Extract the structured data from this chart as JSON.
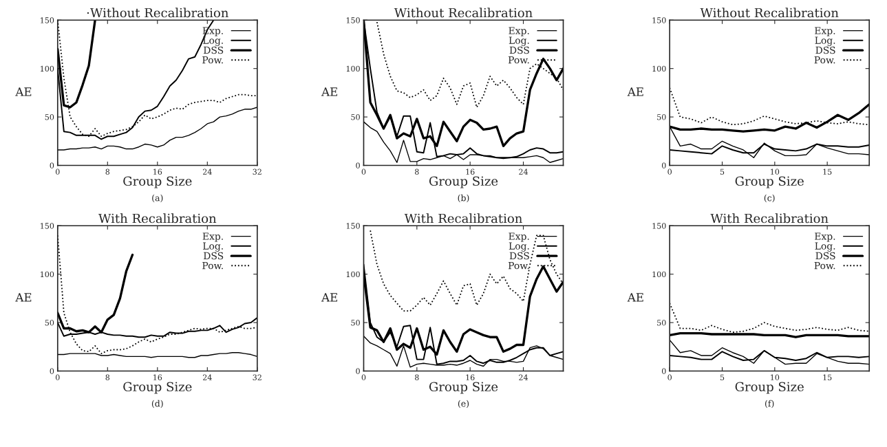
{
  "chart_data": [
    {
      "type": "line",
      "title": "·Without Recalibration",
      "xlabel": "Group Size",
      "ylabel": "AE",
      "annotations": [
        "(a)"
      ],
      "xlim": [
        0,
        32
      ],
      "xticks": [
        0,
        8,
        16,
        24,
        32
      ],
      "ylim": [
        0,
        150
      ],
      "yticks": [
        0,
        50,
        100,
        150
      ],
      "legend": "top right",
      "grid": false,
      "x": [
        0,
        1,
        2,
        3,
        4,
        5,
        6,
        7,
        8,
        9,
        10,
        11,
        12,
        13,
        14,
        15,
        16,
        17,
        18,
        19,
        20,
        21,
        22,
        23,
        24,
        25,
        26,
        27,
        28,
        29,
        30,
        31,
        32
      ],
      "series": [
        {
          "name": "Exp.",
          "color": "#000000",
          "line_style": "solid",
          "values": [
            16,
            16,
            17,
            17,
            18,
            18,
            19,
            17,
            20,
            20,
            19,
            17,
            17,
            19,
            22,
            21,
            19,
            21,
            26,
            29,
            29,
            31,
            34,
            38,
            43,
            45,
            50,
            51,
            53,
            56,
            58,
            58,
            60
          ]
        },
        {
          "name": "Log.",
          "color": "#000000",
          "line_style": "solid",
          "values": [
            100,
            35,
            34,
            31,
            31,
            31,
            31,
            27,
            30,
            30,
            32,
            34,
            39,
            50,
            56,
            57,
            61,
            71,
            82,
            88,
            98,
            110,
            112,
            125,
            140,
            150,
            null,
            null,
            null,
            null,
            null,
            null,
            null
          ]
        },
        {
          "name": "DSS",
          "color": "#000000",
          "line_style": "solid",
          "values": [
            120,
            62,
            60,
            65,
            83,
            103,
            150,
            null,
            null,
            null,
            null,
            null,
            null,
            null,
            null,
            null,
            null,
            null,
            null,
            null,
            null,
            null,
            null,
            null,
            null,
            null,
            null,
            null,
            null,
            null,
            null,
            null,
            null
          ]
        },
        {
          "name": "Pow.",
          "color": "#000000",
          "line_style": "dotted",
          "values": [
            150,
            90,
            50,
            40,
            32,
            30,
            38,
            30,
            33,
            35,
            36,
            37,
            40,
            45,
            52,
            48,
            50,
            53,
            57,
            59,
            58,
            63,
            65,
            66,
            67,
            67,
            65,
            69,
            71,
            73,
            73,
            72,
            72
          ]
        }
      ]
    },
    {
      "type": "line",
      "title": "Without Recalibration",
      "xlabel": "Group Size",
      "ylabel": "AE",
      "annotations": [
        "(b)"
      ],
      "xlim": [
        0,
        30
      ],
      "xticks": [
        0,
        8,
        16,
        24
      ],
      "ylim": [
        0,
        150
      ],
      "yticks": [
        0,
        50,
        100,
        150
      ],
      "legend": "top right",
      "grid": false,
      "x": [
        0,
        1,
        2,
        3,
        4,
        5,
        6,
        7,
        8,
        9,
        10,
        11,
        12,
        13,
        14,
        15,
        16,
        17,
        18,
        19,
        20,
        21,
        22,
        23,
        24,
        25,
        26,
        27,
        28,
        29,
        30
      ],
      "series": [
        {
          "name": "Exp.",
          "color": "#000000",
          "line_style": "solid",
          "values": [
            45,
            39,
            35,
            24,
            15,
            3,
            26,
            4,
            4,
            7,
            6,
            8,
            10,
            7,
            11,
            6,
            11,
            11,
            10,
            10,
            8,
            7,
            8,
            8,
            8,
            9,
            10,
            8,
            3,
            5,
            7
          ]
        },
        {
          "name": "Log.",
          "color": "#000000",
          "line_style": "solid",
          "values": [
            150,
            100,
            55,
            38,
            50,
            30,
            51,
            51,
            14,
            13,
            44,
            9,
            10,
            12,
            11,
            12,
            18,
            12,
            10,
            9,
            8,
            8,
            8,
            9,
            12,
            16,
            18,
            17,
            13,
            13,
            14
          ]
        },
        {
          "name": "DSS",
          "color": "#000000",
          "line_style": "solid",
          "values": [
            150,
            65,
            52,
            38,
            52,
            28,
            33,
            30,
            48,
            28,
            30,
            20,
            45,
            35,
            25,
            40,
            47,
            44,
            37,
            38,
            40,
            20,
            28,
            33,
            35,
            78,
            95,
            110,
            100,
            88,
            100
          ]
        },
        {
          "name": "Pow.",
          "color": "#000000",
          "line_style": "dotted",
          "values": [
            null,
            null,
            148,
            115,
            92,
            77,
            75,
            70,
            73,
            78,
            67,
            72,
            90,
            80,
            63,
            82,
            85,
            60,
            72,
            92,
            82,
            88,
            80,
            70,
            63,
            100,
            105,
            100,
            95,
            90,
            78
          ]
        }
      ]
    },
    {
      "type": "line",
      "title": "Without Recalibration",
      "xlabel": "Group Size",
      "ylabel": "AE",
      "annotations": [
        "(c)"
      ],
      "xlim": [
        0,
        19
      ],
      "xticks": [
        0,
        5,
        10,
        15
      ],
      "ylim": [
        0,
        150
      ],
      "yticks": [
        0,
        50,
        100,
        150
      ],
      "legend": "top right",
      "grid": false,
      "x": [
        0,
        1,
        2,
        3,
        4,
        5,
        6,
        7,
        8,
        9,
        10,
        11,
        12,
        13,
        14,
        15,
        16,
        17,
        18,
        19
      ],
      "series": [
        {
          "name": "Exp.",
          "color": "#000000",
          "line_style": "solid",
          "values": [
            40,
            20,
            22,
            17,
            17,
            25,
            20,
            16,
            8,
            23,
            15,
            10,
            10,
            11,
            22,
            18,
            15,
            12,
            12,
            11
          ]
        },
        {
          "name": "Log.",
          "color": "#000000",
          "line_style": "solid",
          "values": [
            16,
            15,
            14,
            13,
            12,
            20,
            16,
            13,
            13,
            22,
            17,
            16,
            15,
            17,
            22,
            20,
            20,
            19,
            19,
            21
          ]
        },
        {
          "name": "DSS",
          "color": "#000000",
          "line_style": "solid",
          "values": [
            40,
            37,
            37,
            38,
            37,
            37,
            36,
            35,
            36,
            37,
            36,
            40,
            38,
            44,
            39,
            45,
            52,
            47,
            54,
            63
          ]
        },
        {
          "name": "Pow.",
          "color": "#000000",
          "line_style": "dotted",
          "values": [
            80,
            50,
            48,
            44,
            50,
            45,
            42,
            43,
            46,
            51,
            48,
            45,
            43,
            44,
            46,
            44,
            43,
            45,
            43,
            42
          ]
        }
      ]
    },
    {
      "type": "line",
      "title": "With Recalibration",
      "xlabel": "Group Size",
      "ylabel": "AE",
      "annotations": [
        "(d)"
      ],
      "xlim": [
        0,
        32
      ],
      "xticks": [
        0,
        8,
        16,
        24,
        32
      ],
      "ylim": [
        0,
        150
      ],
      "yticks": [
        0,
        50,
        100,
        150
      ],
      "legend": "top right",
      "grid": false,
      "x": [
        0,
        1,
        2,
        3,
        4,
        5,
        6,
        7,
        8,
        9,
        10,
        11,
        12,
        13,
        14,
        15,
        16,
        17,
        18,
        19,
        20,
        21,
        22,
        23,
        24,
        25,
        26,
        27,
        28,
        29,
        30,
        31,
        32
      ],
      "series": [
        {
          "name": "Exp.",
          "color": "#000000",
          "line_style": "solid",
          "values": [
            17,
            17,
            18,
            18,
            18,
            18,
            18,
            16,
            16,
            17,
            16,
            15,
            15,
            15,
            15,
            14,
            15,
            15,
            15,
            15,
            15,
            14,
            14,
            16,
            16,
            17,
            18,
            18,
            19,
            19,
            18,
            17,
            15
          ]
        },
        {
          "name": "Log.",
          "color": "#000000",
          "line_style": "solid",
          "values": [
            50,
            36,
            38,
            38,
            39,
            40,
            38,
            40,
            38,
            37,
            37,
            36,
            36,
            35,
            35,
            37,
            36,
            36,
            40,
            39,
            39,
            41,
            41,
            42,
            42,
            44,
            47,
            40,
            43,
            45,
            49,
            50,
            55
          ]
        },
        {
          "name": "DSS",
          "color": "#000000",
          "line_style": "solid",
          "values": [
            60,
            44,
            44,
            41,
            42,
            40,
            46,
            40,
            53,
            58,
            75,
            103,
            120,
            null,
            null,
            null,
            null,
            null,
            null,
            null,
            null,
            null,
            null,
            null,
            null,
            null,
            null,
            null,
            null,
            null,
            null,
            null,
            null
          ]
        },
        {
          "name": "Pow.",
          "color": "#000000",
          "line_style": "dotted",
          "values": [
            140,
            60,
            40,
            28,
            21,
            20,
            26,
            18,
            21,
            22,
            22,
            23,
            26,
            30,
            33,
            30,
            33,
            35,
            38,
            38,
            40,
            42,
            44,
            43,
            44,
            44,
            40,
            42,
            44,
            46,
            44,
            44,
            45
          ]
        }
      ]
    },
    {
      "type": "line",
      "title": "With Recalibration",
      "xlabel": "Group Size",
      "ylabel": "AE",
      "annotations": [
        "(e)"
      ],
      "xlim": [
        0,
        30
      ],
      "xticks": [
        0,
        8,
        16,
        24
      ],
      "ylim": [
        0,
        150
      ],
      "yticks": [
        0,
        50,
        100,
        150
      ],
      "legend": "top right",
      "grid": false,
      "x": [
        0,
        1,
        2,
        3,
        4,
        5,
        6,
        7,
        8,
        9,
        10,
        11,
        12,
        13,
        14,
        15,
        16,
        17,
        18,
        19,
        20,
        21,
        22,
        23,
        24,
        25,
        26,
        27,
        28,
        29,
        30
      ],
      "series": [
        {
          "name": "Exp.",
          "color": "#000000",
          "line_style": "solid",
          "values": [
            36,
            29,
            26,
            22,
            18,
            5,
            26,
            4,
            7,
            8,
            7,
            6,
            6,
            7,
            6,
            8,
            11,
            7,
            5,
            12,
            12,
            10,
            10,
            9,
            10,
            24,
            26,
            23,
            16,
            14,
            12
          ]
        },
        {
          "name": "Log.",
          "color": "#000000",
          "line_style": "solid",
          "values": [
            110,
            50,
            35,
            30,
            40,
            25,
            46,
            47,
            12,
            12,
            45,
            7,
            8,
            10,
            10,
            11,
            16,
            10,
            8,
            11,
            9,
            9,
            11,
            14,
            18,
            22,
            24,
            24,
            16,
            18,
            20
          ]
        },
        {
          "name": "DSS",
          "color": "#000000",
          "line_style": "solid",
          "values": [
            100,
            45,
            42,
            30,
            44,
            22,
            28,
            24,
            44,
            22,
            25,
            17,
            42,
            30,
            20,
            38,
            43,
            40,
            37,
            35,
            35,
            20,
            23,
            27,
            27,
            77,
            95,
            108,
            95,
            82,
            92
          ]
        },
        {
          "name": "Pow.",
          "color": "#000000",
          "line_style": "dotted",
          "values": [
            null,
            145,
            110,
            90,
            78,
            70,
            62,
            62,
            68,
            76,
            68,
            80,
            93,
            80,
            68,
            88,
            90,
            68,
            80,
            100,
            90,
            98,
            85,
            80,
            72,
            110,
            140,
            140,
            115,
            100,
            90
          ]
        }
      ]
    },
    {
      "type": "line",
      "title": "With Recalibration",
      "xlabel": "Group Size",
      "ylabel": "AE",
      "annotations": [
        "(f)"
      ],
      "xlim": [
        0,
        19
      ],
      "xticks": [
        0,
        5,
        10,
        15
      ],
      "ylim": [
        0,
        150
      ],
      "yticks": [
        0,
        50,
        100,
        150
      ],
      "legend": "top right",
      "grid": false,
      "x": [
        0,
        1,
        2,
        3,
        4,
        5,
        6,
        7,
        8,
        9,
        10,
        11,
        12,
        13,
        14,
        15,
        16,
        17,
        18,
        19
      ],
      "series": [
        {
          "name": "Exp.",
          "color": "#000000",
          "line_style": "solid",
          "values": [
            32,
            19,
            21,
            16,
            16,
            24,
            19,
            15,
            8,
            21,
            14,
            7,
            8,
            8,
            18,
            14,
            10,
            8,
            8,
            7
          ]
        },
        {
          "name": "Log.",
          "color": "#000000",
          "line_style": "solid",
          "values": [
            16,
            15,
            14,
            12,
            12,
            20,
            15,
            11,
            12,
            21,
            14,
            13,
            11,
            13,
            19,
            14,
            15,
            15,
            14,
            15
          ]
        },
        {
          "name": "DSS",
          "color": "#000000",
          "line_style": "solid",
          "values": [
            37,
            39,
            39,
            39,
            38,
            38,
            38,
            38,
            38,
            37,
            37,
            37,
            35,
            37,
            37,
            37,
            37,
            36,
            36,
            36
          ]
        },
        {
          "name": "Pow.",
          "color": "#000000",
          "line_style": "dotted",
          "values": [
            70,
            44,
            44,
            42,
            47,
            43,
            40,
            41,
            44,
            50,
            46,
            44,
            42,
            43,
            45,
            43,
            42,
            45,
            42,
            41
          ]
        }
      ]
    }
  ]
}
